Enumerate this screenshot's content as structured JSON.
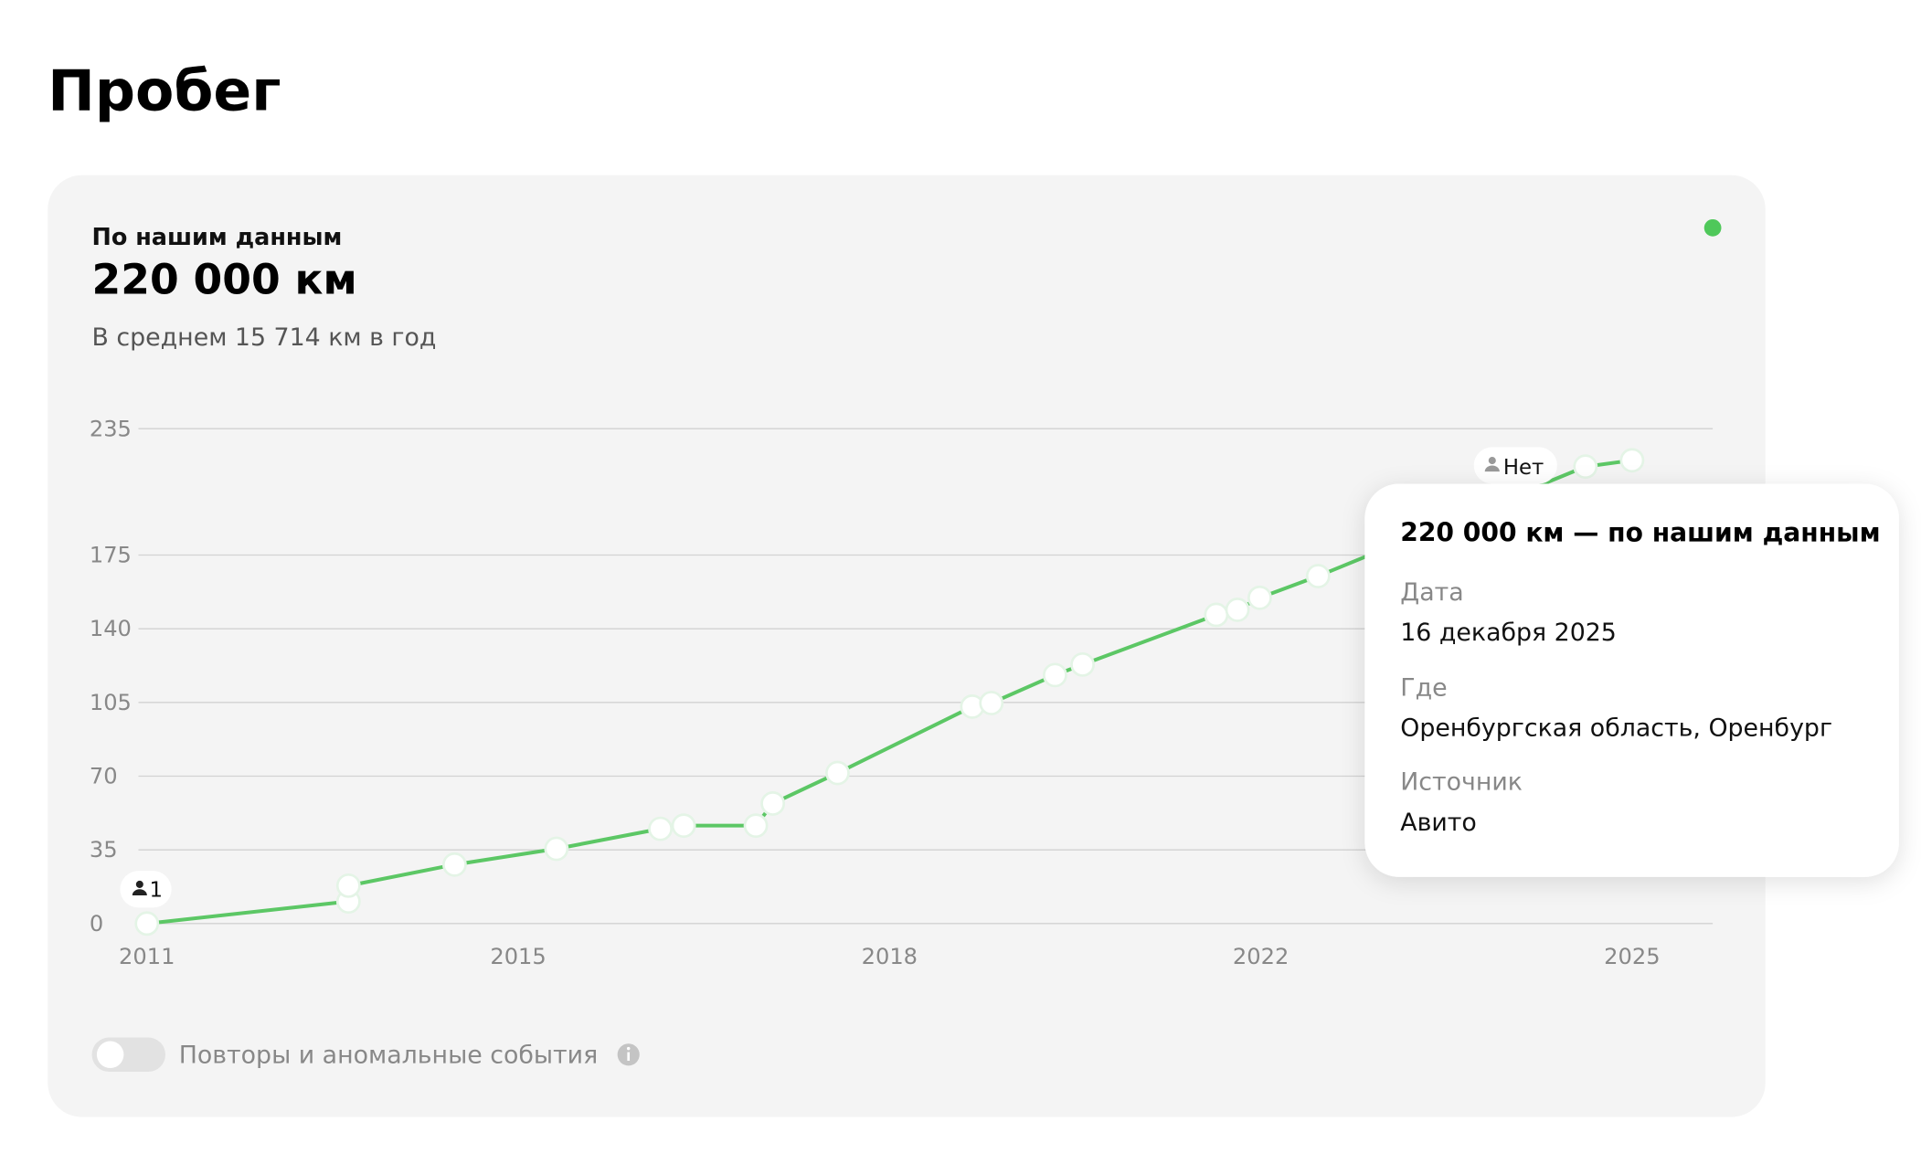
{
  "page_title": "Пробег",
  "card": {
    "label": "По нашим данным",
    "value": "220 000 км",
    "average": "В среднем 15 714 км в год"
  },
  "chart_data": {
    "type": "line",
    "color": "#5cc765",
    "x": [
      2011,
      2012.9,
      2012.9,
      2013.9,
      2014.86,
      2015.84,
      2016.06,
      2016.74,
      2016.9,
      2017.51,
      2018.78,
      2018.96,
      2019.56,
      2019.82,
      2021.08,
      2021.28,
      2021.49,
      2022.04,
      2024.56,
      2025
    ],
    "values": [
      0,
      10.5,
      18,
      28,
      35.5,
      45,
      46.5,
      46.5,
      57,
      71.5,
      103,
      104.7,
      118,
      123,
      146.6,
      149,
      154.7,
      165,
      217,
      220
    ],
    "xlim": [
      2010.92,
      2025.76
    ],
    "xticks": [
      2011,
      {
        "value": 2014.5,
        "label": "2015"
      },
      2018,
      {
        "value": 2021.5,
        "label": "2022"
      },
      2025
    ],
    "ylim": [
      0,
      235
    ],
    "yticks": [
      0,
      35,
      70,
      105,
      140,
      175,
      235
    ],
    "grid": true,
    "annotations": [
      "1",
      "Нет"
    ]
  },
  "toggle": {
    "label": "Повторы и аномальные события"
  },
  "tooltip": {
    "title": "220 000 км — по нашим данным",
    "fields": [
      {
        "label": "Дата",
        "value": "16 декабря 2025"
      },
      {
        "label": "Где",
        "value": "Оренбургская область, Оренбург"
      },
      {
        "label": "Источник",
        "value": "Авито"
      }
    ]
  }
}
